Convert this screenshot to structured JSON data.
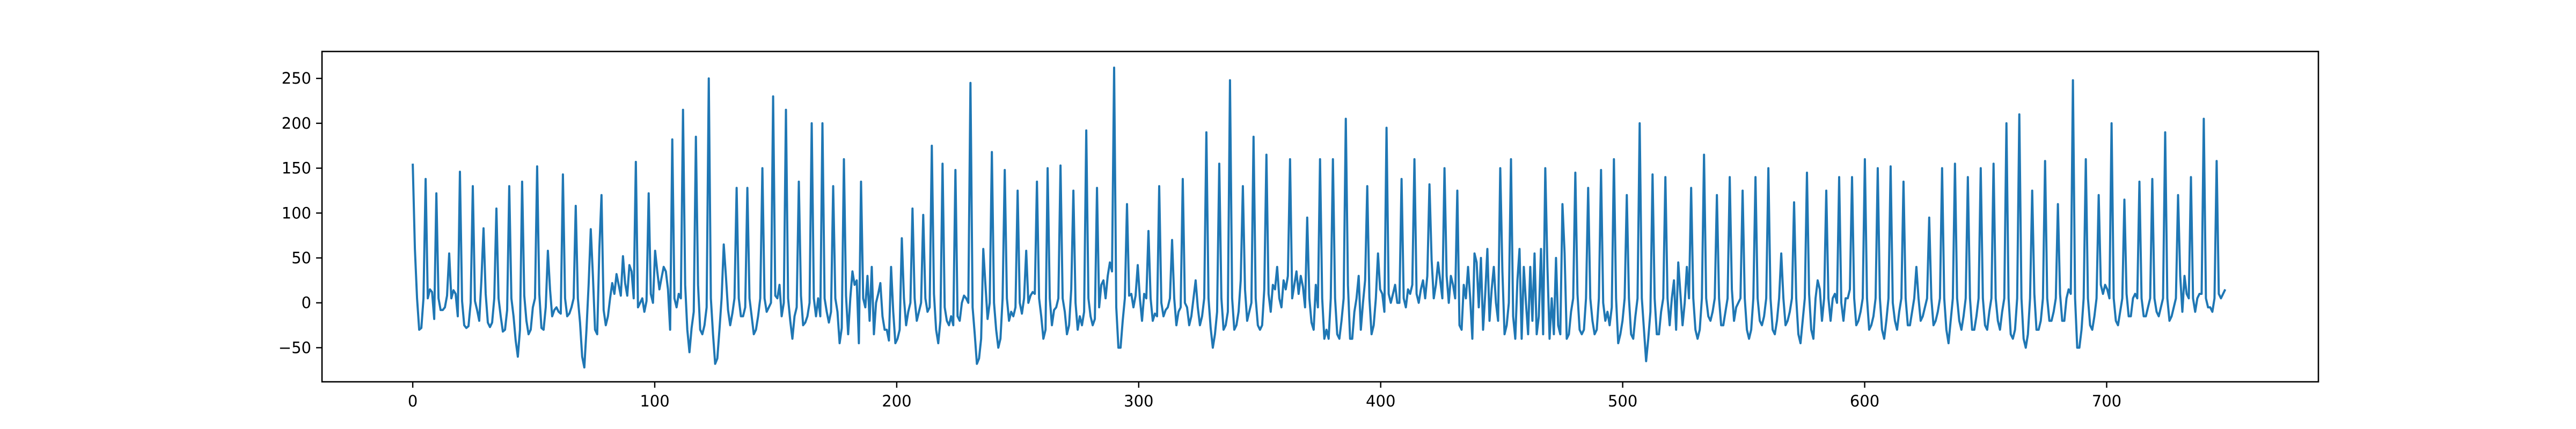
{
  "chart_data": {
    "type": "line",
    "title": "",
    "xlabel": "",
    "ylabel": "",
    "xlim": [
      -37.5,
      787.5
    ],
    "ylim": [
      -88,
      280
    ],
    "x_ticks": [
      0,
      100,
      200,
      300,
      400,
      500,
      600,
      700
    ],
    "y_ticks": [
      -50,
      0,
      50,
      100,
      150,
      200,
      250
    ],
    "grid": false,
    "legend": "none",
    "series": [
      {
        "color": "#1f77b4",
        "values": [
          155,
          60,
          5,
          -30,
          -28,
          5,
          138,
          5,
          15,
          12,
          -18,
          122,
          5,
          -8,
          -8,
          -5,
          8,
          55,
          5,
          14,
          10,
          -15,
          146,
          2,
          -25,
          -28,
          -26,
          0,
          130,
          2,
          -8,
          -20,
          25,
          83,
          10,
          -22,
          -27,
          -22,
          5,
          105,
          5,
          -15,
          -32,
          -30,
          -8,
          130,
          5,
          -15,
          -42,
          -60,
          -30,
          135,
          8,
          -20,
          -35,
          -30,
          -5,
          5,
          152,
          10,
          -28,
          -30,
          -5,
          58,
          15,
          -15,
          -8,
          -5,
          -10,
          -12,
          143,
          5,
          -15,
          -12,
          -5,
          5,
          108,
          5,
          -22,
          -60,
          -72,
          -30,
          20,
          82,
          30,
          -30,
          -35,
          60,
          120,
          -8,
          -25,
          -15,
          5,
          22,
          10,
          32,
          20,
          8,
          52,
          22,
          8,
          42,
          35,
          5,
          157,
          -5,
          0,
          5,
          -10,
          2,
          122,
          10,
          0,
          58,
          35,
          15,
          28,
          40,
          35,
          15,
          -30,
          182,
          5,
          -5,
          10,
          5,
          215,
          20,
          -30,
          -55,
          -28,
          -10,
          185,
          20,
          -30,
          -35,
          -25,
          -5,
          250,
          5,
          -35,
          -68,
          -62,
          -30,
          5,
          65,
          30,
          -8,
          -25,
          -12,
          5,
          128,
          5,
          -15,
          -15,
          -5,
          128,
          5,
          -15,
          -35,
          -30,
          -15,
          5,
          150,
          5,
          -10,
          -5,
          0,
          230,
          8,
          5,
          20,
          -15,
          0,
          215,
          5,
          -20,
          -40,
          -15,
          -5,
          135,
          8,
          -25,
          -22,
          -15,
          0,
          200,
          5,
          -15,
          5,
          -15,
          200,
          5,
          -10,
          -22,
          -10,
          130,
          5,
          -10,
          -45,
          -28,
          160,
          8,
          -35,
          5,
          35,
          20,
          25,
          -45,
          135,
          5,
          -5,
          30,
          -20,
          40,
          -35,
          0,
          10,
          22,
          -15,
          -30,
          -30,
          -42,
          40,
          -10,
          -45,
          -40,
          -30,
          72,
          5,
          -25,
          -10,
          0,
          105,
          5,
          -20,
          -10,
          0,
          98,
          5,
          -10,
          -5,
          175,
          10,
          -30,
          -45,
          -20,
          155,
          -5,
          -20,
          -25,
          -15,
          -25,
          148,
          -15,
          -20,
          0,
          8,
          5,
          0,
          245,
          -5,
          -35,
          -68,
          -62,
          -40,
          60,
          20,
          -18,
          0,
          168,
          0,
          -30,
          -50,
          -40,
          5,
          148,
          5,
          -20,
          -10,
          -15,
          -5,
          125,
          0,
          -12,
          5,
          58,
          0,
          8,
          12,
          10,
          135,
          5,
          -15,
          -40,
          -30,
          150,
          5,
          -25,
          -8,
          -5,
          5,
          153,
          5,
          -10,
          -35,
          -25,
          15,
          125,
          0,
          -30,
          -15,
          -25,
          -10,
          192,
          5,
          -15,
          -25,
          -18,
          128,
          -5,
          20,
          25,
          5,
          30,
          45,
          35,
          262,
          -5,
          -50,
          -50,
          -20,
          5,
          110,
          8,
          10,
          -5,
          8,
          42,
          5,
          -20,
          10,
          5,
          80,
          5,
          -20,
          -12,
          -15,
          130,
          0,
          -15,
          -8,
          -5,
          5,
          70,
          5,
          -25,
          -10,
          -5,
          138,
          0,
          -5,
          -25,
          -15,
          5,
          25,
          -5,
          -25,
          -15,
          5,
          190,
          5,
          -28,
          -50,
          -35,
          -10,
          155,
          5,
          -30,
          -25,
          -10,
          248,
          5,
          -30,
          -25,
          -10,
          25,
          130,
          15,
          -20,
          -10,
          0,
          185,
          5,
          -25,
          -30,
          -25,
          15,
          165,
          10,
          -10,
          20,
          15,
          40,
          5,
          -5,
          25,
          15,
          30,
          160,
          5,
          20,
          35,
          10,
          30,
          18,
          -5,
          95,
          5,
          -22,
          -30,
          20,
          -5,
          160,
          5,
          -40,
          -30,
          -40,
          5,
          160,
          5,
          -35,
          -40,
          -20,
          5,
          205,
          20,
          -40,
          -40,
          -10,
          5,
          30,
          -30,
          0,
          25,
          130,
          5,
          -35,
          -25,
          5,
          55,
          15,
          10,
          -10,
          195,
          10,
          0,
          10,
          20,
          0,
          0,
          138,
          5,
          -5,
          15,
          10,
          20,
          160,
          10,
          0,
          15,
          25,
          5,
          30,
          132,
          48,
          5,
          20,
          45,
          25,
          5,
          150,
          30,
          0,
          30,
          20,
          5,
          125,
          -25,
          -30,
          20,
          5,
          40,
          5,
          -40,
          55,
          45,
          -5,
          50,
          -30,
          10,
          60,
          -20,
          15,
          40,
          0,
          -20,
          150,
          35,
          -35,
          -25,
          0,
          160,
          -15,
          -40,
          25,
          60,
          -40,
          40,
          0,
          -35,
          40,
          -20,
          55,
          -35,
          -15,
          60,
          -35,
          150,
          40,
          -40,
          5,
          -35,
          50,
          -25,
          -35,
          110,
          55,
          -40,
          -35,
          -10,
          5,
          145,
          10,
          -30,
          -35,
          -30,
          5,
          128,
          5,
          -20,
          -35,
          -30,
          5,
          148,
          0,
          -20,
          -10,
          -25,
          -5,
          160,
          5,
          -45,
          -35,
          -20,
          5,
          120,
          5,
          -35,
          -40,
          -15,
          5,
          200,
          5,
          -30,
          -65,
          -40,
          -10,
          143,
          5,
          -35,
          -35,
          -10,
          5,
          140,
          5,
          -25,
          5,
          25,
          -30,
          45,
          10,
          -25,
          0,
          40,
          5,
          128,
          5,
          -30,
          -40,
          -30,
          5,
          165,
          5,
          -15,
          -20,
          -10,
          5,
          120,
          5,
          -25,
          -25,
          -10,
          5,
          140,
          15,
          -20,
          -5,
          0,
          5,
          125,
          5,
          -30,
          -40,
          -30,
          5,
          140,
          5,
          -20,
          -25,
          -15,
          5,
          150,
          5,
          -30,
          -35,
          -20,
          5,
          55,
          5,
          -25,
          -20,
          -10,
          5,
          112,
          5,
          -35,
          -45,
          -20,
          5,
          145,
          10,
          -30,
          -40,
          5,
          25,
          15,
          -20,
          5,
          125,
          5,
          -20,
          5,
          10,
          0,
          140,
          0,
          -20,
          5,
          5,
          15,
          140,
          5,
          -25,
          -20,
          -10,
          5,
          160,
          5,
          -30,
          -25,
          -15,
          5,
          150,
          5,
          -30,
          -40,
          -20,
          5,
          152,
          0,
          -20,
          -30,
          -10,
          5,
          135,
          5,
          -25,
          -25,
          -10,
          5,
          40,
          5,
          -20,
          -15,
          -5,
          5,
          95,
          5,
          -25,
          -20,
          -10,
          5,
          150,
          5,
          -30,
          -45,
          -20,
          5,
          155,
          5,
          -20,
          -30,
          -15,
          5,
          140,
          5,
          -30,
          -30,
          -15,
          5,
          150,
          5,
          -25,
          -30,
          -10,
          5,
          155,
          5,
          -20,
          -30,
          -10,
          5,
          200,
          5,
          -35,
          -40,
          -30,
          5,
          210,
          5,
          -40,
          -50,
          -35,
          5,
          125,
          10,
          -30,
          -30,
          -20,
          5,
          158,
          5,
          -20,
          -20,
          -10,
          5,
          110,
          10,
          -20,
          -20,
          5,
          15,
          10,
          248,
          5,
          -50,
          -50,
          -30,
          5,
          160,
          5,
          -25,
          -30,
          -15,
          5,
          120,
          20,
          10,
          20,
          15,
          5,
          200,
          5,
          -20,
          -25,
          -10,
          5,
          115,
          10,
          -15,
          -15,
          5,
          10,
          5,
          135,
          5,
          -15,
          -15,
          -5,
          5,
          138,
          5,
          -10,
          -15,
          -5,
          5,
          190,
          5,
          -20,
          -15,
          -5,
          5,
          120,
          30,
          -10,
          30,
          10,
          5,
          140,
          5,
          -10,
          5,
          10,
          10,
          205,
          5,
          -5,
          -5,
          -10,
          5,
          158,
          10,
          5,
          10,
          15
        ]
      }
    ]
  }
}
